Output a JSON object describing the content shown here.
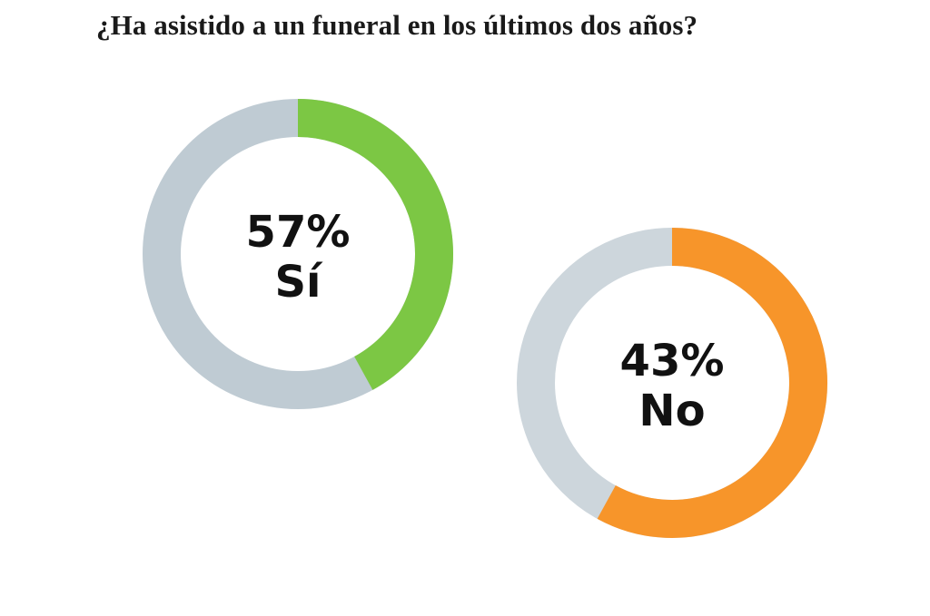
{
  "chart_data": {
    "type": "pie",
    "title": "¿Ha asistido a un funeral en los últimos dos años?",
    "slices": [
      {
        "label": "Sí",
        "value": 57,
        "value_text": "57%",
        "color": "#7cc744",
        "remainder_color": "#bfcbd3"
      },
      {
        "label": "No",
        "value": 43,
        "value_text": "43%",
        "color": "#f7952a",
        "remainder_color": "#cdd6dc"
      }
    ],
    "ring_fill_percent": [
      42,
      58
    ]
  }
}
